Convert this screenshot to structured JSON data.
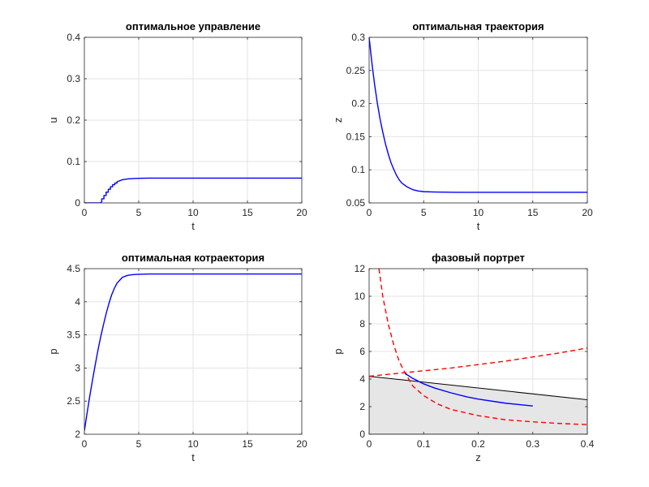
{
  "figure": {
    "background": "#ffffff",
    "curve_color": "#0000ff",
    "isocline_color": "#ff0000",
    "region_fill": "#e6e6e6"
  },
  "chart_data": [
    {
      "id": "control",
      "type": "line",
      "title": "оптимальное управление",
      "xlabel": "t",
      "ylabel": "u",
      "xlim": [
        0,
        20
      ],
      "ylim": [
        0,
        0.4
      ],
      "xticks": [
        0,
        5,
        10,
        15,
        20
      ],
      "yticks": [
        0,
        0.1,
        0.2,
        0.3,
        0.4
      ],
      "xtick_labels": [
        "0",
        "5",
        "10",
        "15",
        "20"
      ],
      "ytick_labels": [
        "0",
        "0.1",
        "0.2",
        "0.3",
        "0.4"
      ],
      "grid": true,
      "series": [
        {
          "style": "solid",
          "color": "#0000ff",
          "points": [
            [
              0,
              0
            ],
            [
              1.5,
              0
            ],
            [
              1.6,
              0.003
            ],
            [
              1.6,
              0.01
            ],
            [
              1.8,
              0.01
            ],
            [
              1.8,
              0.018
            ],
            [
              2.0,
              0.018
            ],
            [
              2.0,
              0.026
            ],
            [
              2.2,
              0.026
            ],
            [
              2.2,
              0.033
            ],
            [
              2.4,
              0.033
            ],
            [
              2.4,
              0.039
            ],
            [
              2.6,
              0.039
            ],
            [
              2.6,
              0.044
            ],
            [
              2.8,
              0.044
            ],
            [
              2.8,
              0.048
            ],
            [
              3.0,
              0.048
            ],
            [
              3.0,
              0.051
            ],
            [
              3.5,
              0.056
            ],
            [
              4.0,
              0.058
            ],
            [
              4.5,
              0.059
            ],
            [
              5.0,
              0.0595
            ],
            [
              6.0,
              0.06
            ],
            [
              20,
              0.06
            ]
          ]
        }
      ]
    },
    {
      "id": "trajectory",
      "type": "line",
      "title": "оптимальная траектория",
      "xlabel": "t",
      "ylabel": "z",
      "xlim": [
        0,
        20
      ],
      "ylim": [
        0.05,
        0.3
      ],
      "xticks": [
        0,
        5,
        10,
        15,
        20
      ],
      "yticks": [
        0.05,
        0.1,
        0.15,
        0.2,
        0.25,
        0.3
      ],
      "xtick_labels": [
        "0",
        "5",
        "10",
        "15",
        "20"
      ],
      "ytick_labels": [
        "0.05",
        "0.1",
        "0.15",
        "0.2",
        "0.25",
        "0.3"
      ],
      "grid": true,
      "series": [
        {
          "style": "solid",
          "color": "#0000ff",
          "points": [
            [
              0,
              0.3
            ],
            [
              0.25,
              0.262
            ],
            [
              0.5,
              0.229
            ],
            [
              0.75,
              0.201
            ],
            [
              1.0,
              0.177
            ],
            [
              1.25,
              0.157
            ],
            [
              1.5,
              0.139
            ],
            [
              1.75,
              0.124
            ],
            [
              2.0,
              0.111
            ],
            [
              2.25,
              0.101
            ],
            [
              2.5,
              0.092
            ],
            [
              2.75,
              0.085
            ],
            [
              3.0,
              0.08
            ],
            [
              3.5,
              0.074
            ],
            [
              4.0,
              0.07
            ],
            [
              4.5,
              0.068
            ],
            [
              5.0,
              0.067
            ],
            [
              6.0,
              0.0665
            ],
            [
              8.0,
              0.066
            ],
            [
              20,
              0.066
            ]
          ]
        }
      ]
    },
    {
      "id": "costate",
      "type": "line",
      "title": "оптимальная котраектория",
      "xlabel": "t",
      "ylabel": "p",
      "xlim": [
        0,
        20
      ],
      "ylim": [
        2,
        4.5
      ],
      "xticks": [
        0,
        5,
        10,
        15,
        20
      ],
      "yticks": [
        2,
        2.5,
        3,
        3.5,
        4,
        4.5
      ],
      "xtick_labels": [
        "0",
        "5",
        "10",
        "15",
        "20"
      ],
      "ytick_labels": [
        "2",
        "2.5",
        "3",
        "3.5",
        "4",
        "4.5"
      ],
      "grid": true,
      "series": [
        {
          "style": "solid",
          "color": "#0000ff",
          "points": [
            [
              0,
              2.05
            ],
            [
              0.25,
              2.32
            ],
            [
              0.5,
              2.58
            ],
            [
              0.75,
              2.82
            ],
            [
              1.0,
              3.05
            ],
            [
              1.25,
              3.27
            ],
            [
              1.5,
              3.47
            ],
            [
              1.75,
              3.65
            ],
            [
              2.0,
              3.82
            ],
            [
              2.25,
              3.97
            ],
            [
              2.5,
              4.1
            ],
            [
              2.75,
              4.2
            ],
            [
              3.0,
              4.28
            ],
            [
              3.5,
              4.37
            ],
            [
              4.0,
              4.4
            ],
            [
              4.5,
              4.41
            ],
            [
              5.0,
              4.415
            ],
            [
              6.0,
              4.42
            ],
            [
              20,
              4.42
            ]
          ]
        }
      ]
    },
    {
      "id": "phase",
      "type": "line",
      "title": "фазовый портрет",
      "xlabel": "z",
      "ylabel": "p",
      "xlim": [
        0,
        0.4
      ],
      "ylim": [
        0,
        12
      ],
      "xticks": [
        0,
        0.1,
        0.2,
        0.3,
        0.4
      ],
      "yticks": [
        0,
        2,
        4,
        6,
        8,
        10,
        12
      ],
      "xtick_labels": [
        "0",
        "0.1",
        "0.2",
        "0.3",
        "0.4"
      ],
      "ytick_labels": [
        "0",
        "2",
        "4",
        "6",
        "8",
        "10",
        "12"
      ],
      "grid": true,
      "region": {
        "fill": "#e6e6e6",
        "stroke": "#000000",
        "points": [
          [
            0,
            0
          ],
          [
            0,
            4.2
          ],
          [
            0.4,
            2.5
          ],
          [
            0.4,
            0
          ]
        ]
      },
      "series": [
        {
          "style": "dashed",
          "color": "#ff0000",
          "points": [
            [
              0.018,
              12
            ],
            [
              0.025,
              10
            ],
            [
              0.035,
              8
            ],
            [
              0.045,
              6.5
            ],
            [
              0.055,
              5.3
            ],
            [
              0.065,
              4.5
            ],
            [
              0.08,
              3.5
            ],
            [
              0.1,
              2.8
            ],
            [
              0.125,
              2.2
            ],
            [
              0.15,
              1.8
            ],
            [
              0.2,
              1.35
            ],
            [
              0.25,
              1.05
            ],
            [
              0.3,
              0.9
            ],
            [
              0.35,
              0.78
            ],
            [
              0.4,
              0.7
            ]
          ]
        },
        {
          "style": "dashed",
          "color": "#ff0000",
          "points": [
            [
              0,
              4.2
            ],
            [
              0.05,
              4.4
            ],
            [
              0.1,
              4.6
            ],
            [
              0.15,
              4.8
            ],
            [
              0.2,
              5.05
            ],
            [
              0.25,
              5.3
            ],
            [
              0.3,
              5.6
            ],
            [
              0.35,
              5.9
            ],
            [
              0.4,
              6.25
            ]
          ]
        },
        {
          "style": "solid",
          "color": "#0000ff",
          "points": [
            [
              0.066,
              4.42
            ],
            [
              0.07,
              4.3
            ],
            [
              0.08,
              4.05
            ],
            [
              0.1,
              3.65
            ],
            [
              0.12,
              3.35
            ],
            [
              0.15,
              3.0
            ],
            [
              0.18,
              2.7
            ],
            [
              0.2,
              2.55
            ],
            [
              0.25,
              2.25
            ],
            [
              0.3,
              2.05
            ]
          ]
        }
      ]
    }
  ]
}
